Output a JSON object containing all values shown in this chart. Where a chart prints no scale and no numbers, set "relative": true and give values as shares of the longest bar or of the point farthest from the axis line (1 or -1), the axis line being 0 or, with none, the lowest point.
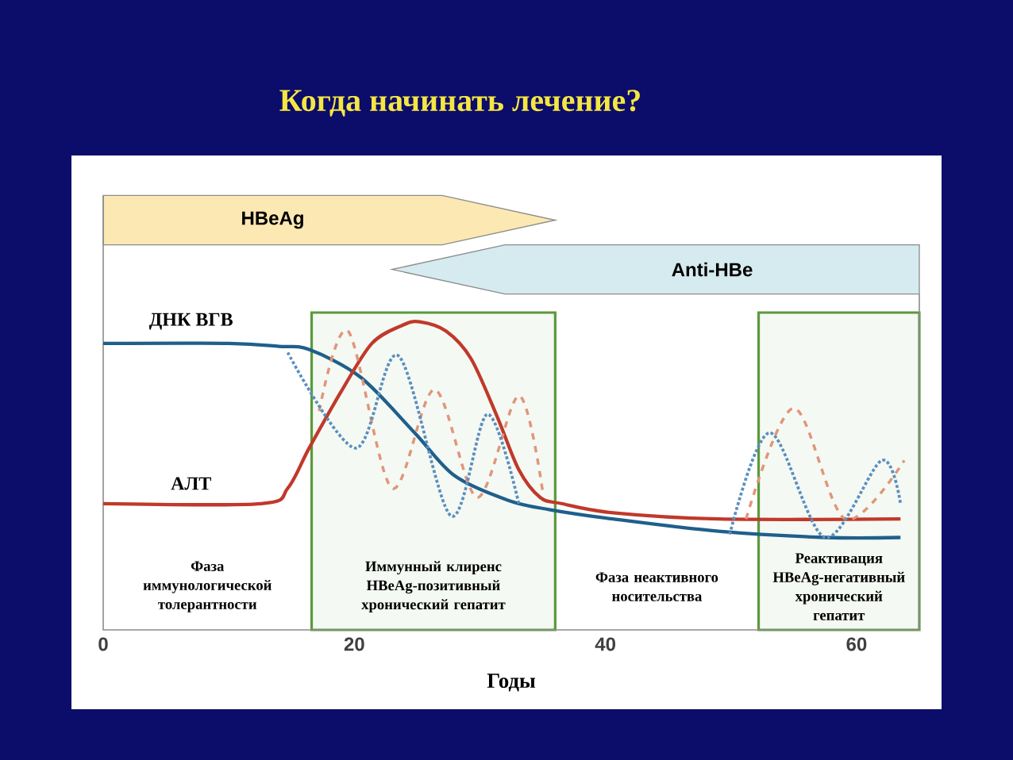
{
  "chart_data": {
    "type": "line",
    "title": "Когда начинать лечение?",
    "xlabel": "Годы",
    "relative": true,
    "xlim": [
      0,
      65
    ],
    "xticks": [
      0,
      20,
      40,
      60
    ],
    "series": [
      {
        "name": "ДНК ВГВ",
        "color": "#1f5f8b",
        "line_style": "solid",
        "x": [
          0,
          10,
          14,
          16.4,
          20.5,
          24.8,
          28,
          32.3,
          35.6,
          40.6,
          49,
          57.5,
          63.5
        ],
        "values": [
          0.93,
          0.93,
          0.92,
          0.91,
          0.82,
          0.64,
          0.5,
          0.42,
          0.39,
          0.36,
          0.32,
          0.3,
          0.3
        ]
      },
      {
        "name": "АЛТ",
        "color": "#c0392b",
        "line_style": "solid",
        "x": [
          0,
          12.6,
          14.7,
          16.4,
          18.9,
          21.4,
          23.9,
          25.2,
          27.3,
          29.3,
          31.4,
          33.1,
          34.8,
          36.5,
          40.6,
          49,
          63.5
        ],
        "values": [
          0.41,
          0.41,
          0.46,
          0.59,
          0.77,
          0.93,
          0.99,
          1.0,
          0.97,
          0.88,
          0.69,
          0.52,
          0.43,
          0.41,
          0.38,
          0.36,
          0.36
        ]
      },
      {
        "color": "#e0967a",
        "line_style": "dashed",
        "x": [
          17.2,
          19.5,
          23,
          26.4,
          29.8,
          33.1,
          35,
          42,
          51.2,
          55,
          59.1,
          63.8
        ],
        "values": [
          0.71,
          0.97,
          0.46,
          0.78,
          0.43,
          0.76,
          0.45,
          null,
          0.36,
          0.72,
          0.36,
          0.55
        ]
      },
      {
        "color": "#5b8fbf",
        "line_style": "dotted",
        "x": [
          14.7,
          20.1,
          23.5,
          27.7,
          30.6,
          33.1,
          42,
          49.9,
          53.1,
          57.5,
          62,
          63.5
        ],
        "values": [
          0.9,
          0.59,
          0.89,
          0.37,
          0.7,
          0.41,
          null,
          0.31,
          0.64,
          0.3,
          0.55,
          0.41
        ]
      }
    ],
    "bands": [
      {
        "axis": "x",
        "from": 16.6,
        "to": 36,
        "label": "Иммунный клиренс HBeAg-позитивный хронический гепатит",
        "color": "#5a9a3c"
      },
      {
        "axis": "x",
        "from": 52.2,
        "to": 65,
        "label": "Реактивация HBeAg-негативный хронический гепатит",
        "color": "#5a9a3c"
      }
    ],
    "annotations": [
      "HBeAg",
      "Anti-HBe",
      "Фаза иммунологической толерантности",
      "Фаза неактивного носительства"
    ]
  }
}
